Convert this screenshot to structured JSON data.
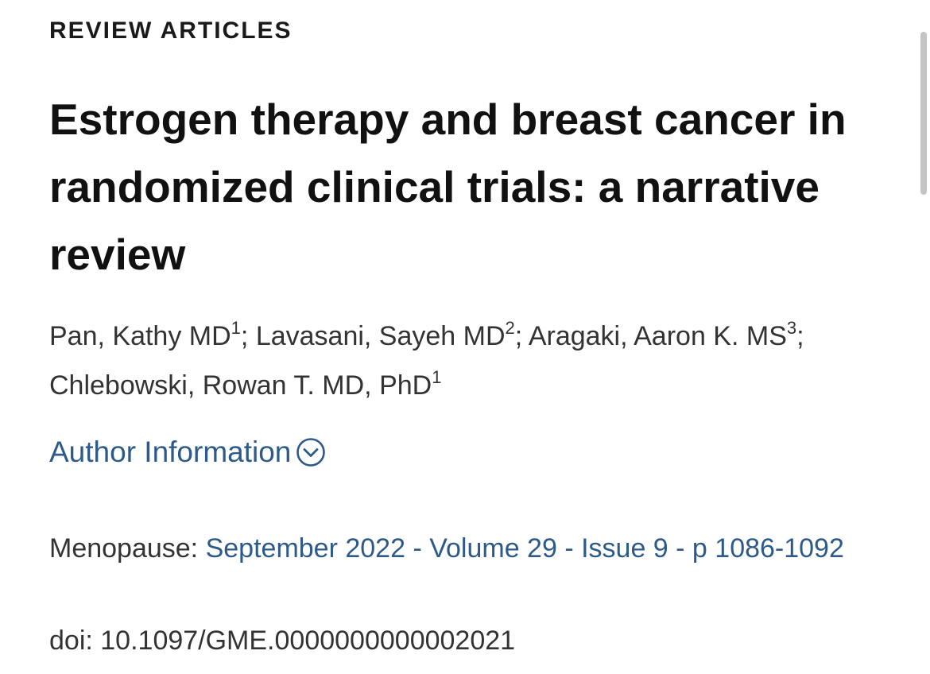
{
  "section": "REVIEW ARTICLES",
  "title": "Estrogen therapy and breast cancer in randomized clinical trials: a narrative review",
  "authors": [
    {
      "name": "Pan, Kathy MD",
      "sup": "1",
      "sep": "; "
    },
    {
      "name": "Lavasani, Sayeh MD",
      "sup": "2",
      "sep": "; "
    },
    {
      "name": "Aragaki, Aaron K. MS",
      "sup": "3",
      "sep": "; "
    },
    {
      "name": "Chlebowski, Rowan T. MD, PhD",
      "sup": "1",
      "sep": ""
    }
  ],
  "author_info": {
    "label": "Author Information",
    "icon": "chevron-down-circle-icon"
  },
  "citation": {
    "journal": "Menopause: ",
    "issue_link": "September 2022 - Volume 29 - Issue 9 - p 1086-1092"
  },
  "doi": "doi: 10.1097/GME.0000000000002021",
  "colors": {
    "link": "#2d5a88",
    "text": "#333333",
    "heading": "#111111"
  }
}
